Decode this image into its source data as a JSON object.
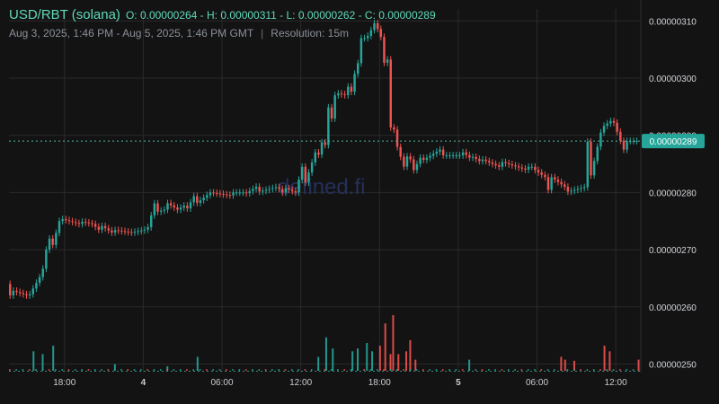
{
  "header": {
    "pair": "USD/RBT (solana)",
    "ohlc": "O: 0.00000264 - H: 0.00000311 - L: 0.00000262 - C: 0.00000289",
    "range": "Aug 3, 2025, 1:46 PM - Aug 5, 2025, 1:46 PM GMT",
    "separator": "|",
    "resolution": "Resolution: 15m"
  },
  "watermark": "defined.fi",
  "colors": {
    "up": "#26a69a",
    "down": "#ef5350",
    "background": "#131313",
    "grid": "#2a2a2a",
    "accent": "#26a69a"
  },
  "chart_data": {
    "type": "candlestick",
    "title": "USD/RBT (solana)",
    "resolution": "15m",
    "y_ticks": [
      "0.00000310",
      "0.00000300",
      "0.00000290",
      "0.00000280",
      "0.00000270",
      "0.00000260",
      "0.00000250"
    ],
    "ylim": [
      2.485e-06,
      3.121e-06
    ],
    "x_ticks": [
      {
        "label": "18:00",
        "hour": 4.23,
        "bold": false
      },
      {
        "label": "4",
        "hour": 10.23,
        "bold": true
      },
      {
        "label": "06:00",
        "hour": 16.23,
        "bold": false
      },
      {
        "label": "12:00",
        "hour": 22.23,
        "bold": false
      },
      {
        "label": "18:00",
        "hour": 28.23,
        "bold": false
      },
      {
        "label": "5",
        "hour": 34.23,
        "bold": true
      },
      {
        "label": "06:00",
        "hour": 40.23,
        "bold": false
      },
      {
        "label": "12:00",
        "hour": 46.23,
        "bold": false
      }
    ],
    "current_price": "0.00000289",
    "current_value": 2.89e-06,
    "volume_reference": 2.5e-06,
    "anchors": [
      [
        0,
        2.64,
        2.63
      ],
      [
        0.25,
        2.63,
        2.62
      ],
      [
        1.5,
        2.62,
        2.62
      ],
      [
        1.7,
        2.62,
        2.66
      ],
      [
        2.7,
        2.66,
        2.66
      ],
      [
        3.0,
        2.66,
        2.7
      ],
      [
        3.4,
        2.7,
        2.755
      ],
      [
        4.0,
        2.755,
        2.75
      ],
      [
        5.5,
        2.75,
        2.745
      ],
      [
        6.5,
        2.745,
        2.745
      ],
      [
        7.0,
        2.745,
        2.735
      ],
      [
        8.0,
        2.735,
        2.73
      ],
      [
        9.5,
        2.73,
        2.73
      ],
      [
        10.5,
        2.73,
        2.735
      ],
      [
        10.7,
        2.735,
        2.765
      ],
      [
        11.3,
        2.765,
        2.785
      ],
      [
        12.0,
        2.785,
        2.77
      ],
      [
        13.0,
        2.77,
        2.77
      ],
      [
        13.7,
        2.77,
        2.78
      ],
      [
        14.4,
        2.78,
        2.8
      ],
      [
        15.5,
        2.8,
        2.8
      ],
      [
        17.0,
        2.8,
        2.795
      ],
      [
        18.0,
        2.795,
        2.8
      ],
      [
        19.0,
        2.8,
        2.81
      ],
      [
        20.6,
        2.81,
        2.81
      ],
      [
        21.0,
        2.81,
        2.8
      ],
      [
        22.0,
        2.8,
        2.8
      ],
      [
        22.5,
        2.8,
        2.845
      ],
      [
        23.5,
        2.845,
        2.87
      ],
      [
        24.2,
        2.87,
        2.905
      ],
      [
        24.6,
        2.905,
        2.975
      ],
      [
        25.0,
        2.975,
        2.97
      ],
      [
        25.8,
        2.97,
        2.97
      ],
      [
        26.2,
        2.97,
        3.0
      ],
      [
        26.6,
        3.0,
        3.02
      ],
      [
        27.0,
        3.02,
        3.07
      ],
      [
        27.4,
        3.07,
        3.1
      ],
      [
        27.9,
        3.1,
        3.09
      ],
      [
        28.4,
        3.09,
        3.08
      ],
      [
        28.9,
        3.08,
        3.0
      ],
      [
        29.3,
        3.0,
        2.89
      ],
      [
        29.6,
        2.89,
        2.865
      ],
      [
        30.4,
        2.865,
        2.835
      ],
      [
        30.9,
        2.835,
        2.855
      ],
      [
        31.6,
        2.855,
        2.865
      ],
      [
        33.0,
        2.865,
        2.875
      ],
      [
        34.5,
        2.875,
        2.865
      ],
      [
        35.3,
        2.865,
        2.86
      ],
      [
        36.0,
        2.86,
        2.855
      ],
      [
        37.5,
        2.855,
        2.845
      ],
      [
        39.5,
        2.845,
        2.84
      ],
      [
        40.2,
        2.84,
        2.845
      ],
      [
        40.8,
        2.845,
        2.83
      ],
      [
        41.3,
        2.83,
        2.8
      ],
      [
        42.5,
        2.8,
        2.81
      ],
      [
        44.1,
        2.81,
        2.81
      ],
      [
        44.3,
        2.81,
        2.915
      ],
      [
        45.4,
        2.915,
        2.92
      ],
      [
        46.0,
        2.92,
        2.925
      ],
      [
        46.2,
        2.925,
        2.89
      ],
      [
        47.0,
        2.89,
        2.875
      ],
      [
        47.9,
        2.875,
        2.89
      ]
    ],
    "volume_events": [
      [
        1.8,
        0.35
      ],
      [
        2.5,
        0.3
      ],
      [
        3.3,
        0.45
      ],
      [
        8.0,
        0.12
      ],
      [
        12.0,
        0.08
      ],
      [
        14.3,
        0.25
      ],
      [
        23.5,
        0.25
      ],
      [
        24.1,
        0.6
      ],
      [
        24.6,
        0.4
      ],
      [
        26.1,
        0.35
      ],
      [
        26.5,
        0.4
      ],
      [
        27.2,
        0.5
      ],
      [
        27.6,
        0.35
      ],
      [
        28.2,
        0.45
      ],
      [
        28.6,
        0.85
      ],
      [
        29.0,
        0.3
      ],
      [
        29.2,
        1.0
      ],
      [
        29.6,
        0.3
      ],
      [
        30.2,
        0.35
      ],
      [
        30.5,
        0.55
      ],
      [
        30.9,
        0.2
      ],
      [
        35.0,
        0.2
      ],
      [
        42.0,
        0.25
      ],
      [
        42.3,
        0.2
      ],
      [
        43.0,
        0.18
      ],
      [
        45.3,
        0.45
      ],
      [
        45.7,
        0.35
      ],
      [
        47.9,
        0.2
      ]
    ]
  }
}
